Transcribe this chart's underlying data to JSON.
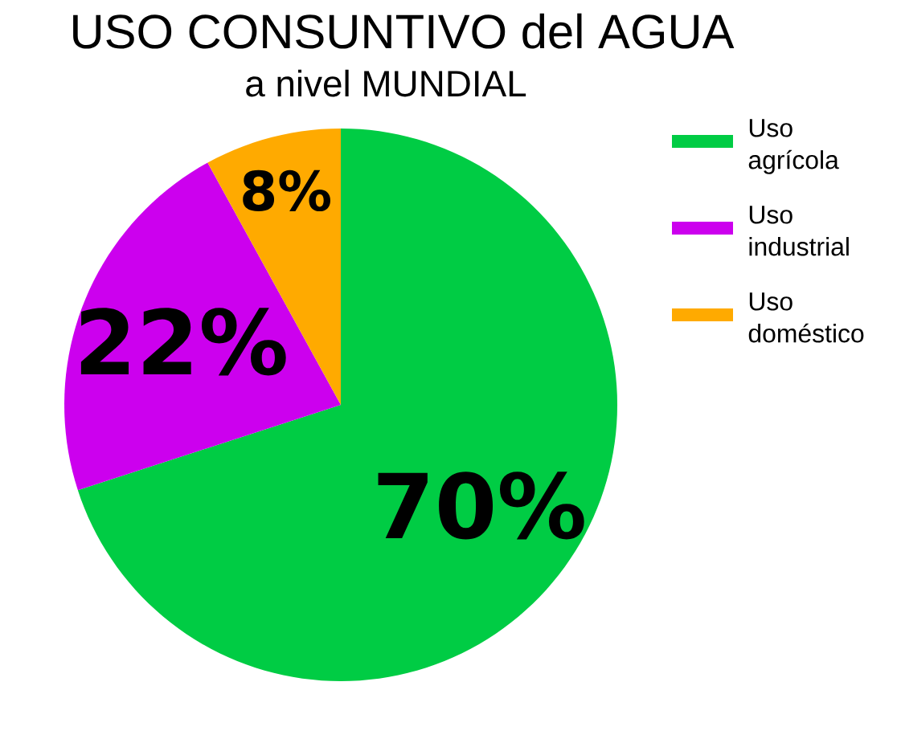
{
  "chart_data": {
    "type": "pie",
    "title": "USO CONSUNTIVO del AGUA",
    "subtitle": "a nivel MUNDIAL",
    "categories": [
      "Uso agrícola",
      "Uso industrial",
      "Uso doméstico"
    ],
    "values": [
      70,
      22,
      8
    ],
    "colors": [
      "#00cc44",
      "#cc00ee",
      "#ffaa00"
    ],
    "value_labels": [
      "70%",
      "22%",
      "8%"
    ],
    "legend": "right"
  }
}
